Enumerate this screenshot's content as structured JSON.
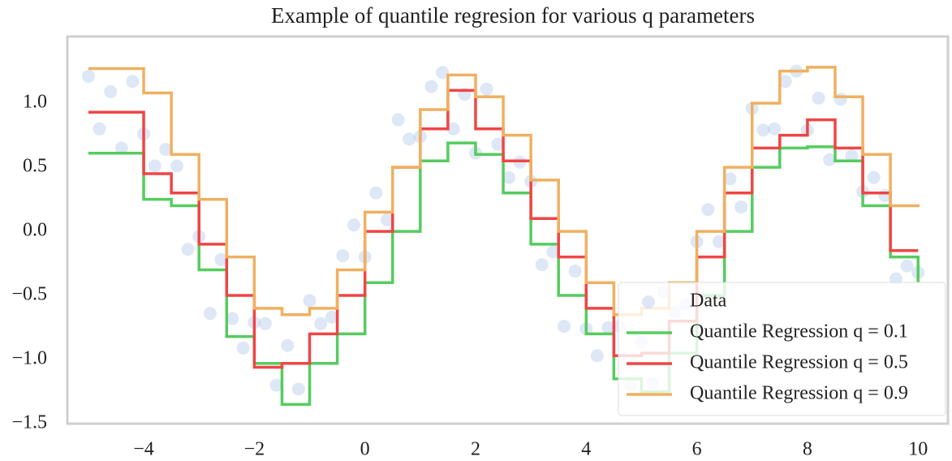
{
  "chart_data": {
    "type": "scatter_step",
    "title": "Example of quantile regresion for various q parameters",
    "xlim": [
      -5.38,
      10.54
    ],
    "ylim": [
      -1.5,
      1.52
    ],
    "xticks": [
      {
        "value": -4,
        "label": "−4"
      },
      {
        "value": -2,
        "label": "−2"
      },
      0,
      2,
      4,
      6,
      8,
      10
    ],
    "yticks": [
      {
        "value": -1.5,
        "label": "−1.5"
      },
      {
        "value": -1.0,
        "label": "−1.0"
      },
      {
        "value": -0.5,
        "label": "−0.5"
      },
      {
        "value": 0,
        "label": "0.0"
      },
      {
        "value": 0.5,
        "label": "0.5"
      },
      {
        "value": 1.0,
        "label": "1.0"
      }
    ],
    "legend": "lower right",
    "series": [
      {
        "name": "Data",
        "kind": "scatter",
        "color": "#9dbbe6",
        "x": [
          -5,
          -4.8,
          -4.6,
          -4.4,
          -4.2,
          -4,
          -3.8,
          -3.6,
          -3.4,
          -3.2,
          -3,
          -2.8,
          -2.6,
          -2.4,
          -2.2,
          -2,
          -1.8,
          -1.6,
          -1.4,
          -1.2,
          -1,
          -0.8,
          -0.6,
          -0.4,
          -0.2,
          0,
          0.2,
          0.4,
          0.6,
          0.8,
          1,
          1.2,
          1.4,
          1.6,
          1.8,
          2,
          2.2,
          2.4,
          2.6,
          2.8,
          3,
          3.2,
          3.4,
          3.6,
          3.8,
          4,
          4.2,
          4.4,
          4.6,
          4.8,
          5,
          5.2,
          5.4,
          5.6,
          5.8,
          6,
          6.2,
          6.4,
          6.6,
          6.8,
          7,
          7.2,
          7.4,
          7.6,
          7.8,
          8,
          8.2,
          8.4,
          8.6,
          8.8,
          9,
          9.2,
          9.4,
          9.6,
          9.8,
          10
        ],
        "values": [
          1.21,
          0.8,
          1.09,
          0.65,
          1.17,
          0.76,
          0.51,
          0.64,
          0.51,
          -0.14,
          -0.04,
          -0.64,
          -0.22,
          -0.68,
          -0.91,
          -0.71,
          -0.72,
          -1.2,
          -0.89,
          -1.23,
          -0.54,
          -0.72,
          -0.67,
          -0.19,
          0.05,
          -0.2,
          0.3,
          0.09,
          0.87,
          0.72,
          0.74,
          1.13,
          1.24,
          0.8,
          1.07,
          0.61,
          1.11,
          0.68,
          0.42,
          0.54,
          0.39,
          -0.26,
          -0.16,
          -0.74,
          -0.31,
          -0.76,
          -0.97,
          -0.75,
          -0.74,
          -1.2,
          -0.86,
          -1.18,
          -0.47,
          -0.63,
          -0.57,
          -0.08,
          0.17,
          -0.08,
          0.41,
          0.19,
          0.96,
          0.79,
          0.8,
          1.17,
          1.25,
          0.79,
          1.04,
          0.56,
          1.03,
          0.59,
          0.31,
          0.42,
          0.28,
          -0.37,
          -0.27,
          -0.32
        ]
      },
      {
        "name": "Quantile Regression q = 0.1",
        "kind": "step",
        "color": "#55cc5e",
        "x": [
          -5,
          -4.5,
          -4,
          -3.5,
          -3,
          -2.5,
          -2,
          -1.5,
          -1,
          -0.5,
          0,
          0.5,
          1,
          1.5,
          2,
          2.5,
          3,
          3.5,
          4,
          4.5,
          5,
          5.5,
          6,
          6.5,
          7,
          7.5,
          8,
          8.5,
          9,
          9.5,
          10
        ],
        "values": [
          0.61,
          0.61,
          0.25,
          0.2,
          -0.3,
          -0.82,
          -1.03,
          -1.35,
          -1.03,
          -0.8,
          -0.4,
          0.0,
          0.55,
          0.69,
          0.6,
          0.3,
          -0.1,
          -0.5,
          -0.8,
          -1.15,
          -1.25,
          -0.95,
          -0.5,
          0.0,
          0.5,
          0.65,
          0.66,
          0.55,
          0.2,
          -0.2,
          -0.4
        ]
      },
      {
        "name": "Quantile Regression q = 0.5",
        "kind": "step",
        "color": "#f04545",
        "x": [
          -5,
          -4.5,
          -4,
          -3.5,
          -3,
          -2.5,
          -2,
          -1.5,
          -1,
          -0.5,
          0,
          0.5,
          1,
          1.5,
          2,
          2.5,
          3,
          3.5,
          4,
          4.5,
          5,
          5.5,
          6,
          6.5,
          7,
          7.5,
          8,
          8.5,
          9,
          9.5,
          10
        ],
        "values": [
          0.93,
          0.93,
          0.45,
          0.3,
          -0.1,
          -0.5,
          -1.06,
          -1.03,
          -0.8,
          -0.5,
          0.0,
          0.5,
          0.8,
          1.1,
          0.8,
          0.55,
          0.1,
          -0.2,
          -0.6,
          -0.97,
          -0.95,
          -0.7,
          -0.2,
          0.3,
          0.65,
          0.75,
          0.87,
          0.65,
          0.3,
          -0.15,
          -0.15
        ]
      },
      {
        "name": "Quantile Regression q = 0.9",
        "kind": "step",
        "color": "#f0b060",
        "x": [
          -5,
          -4.5,
          -4,
          -3.5,
          -3,
          -2.5,
          -2,
          -1.5,
          -1,
          -0.5,
          0,
          0.5,
          1,
          1.5,
          2,
          2.5,
          3,
          3.5,
          4,
          4.5,
          5,
          5.5,
          6,
          6.5,
          7,
          7.5,
          8,
          8.5,
          9,
          9.5,
          10
        ],
        "values": [
          1.27,
          1.27,
          1.08,
          0.6,
          0.25,
          -0.2,
          -0.6,
          -0.65,
          -0.6,
          -0.3,
          0.15,
          0.5,
          0.95,
          1.22,
          1.05,
          0.75,
          0.4,
          0.0,
          -0.4,
          -0.65,
          -0.6,
          -0.4,
          0.0,
          0.5,
          1.0,
          1.25,
          1.28,
          1.05,
          0.6,
          0.2,
          0.19
        ]
      }
    ]
  }
}
